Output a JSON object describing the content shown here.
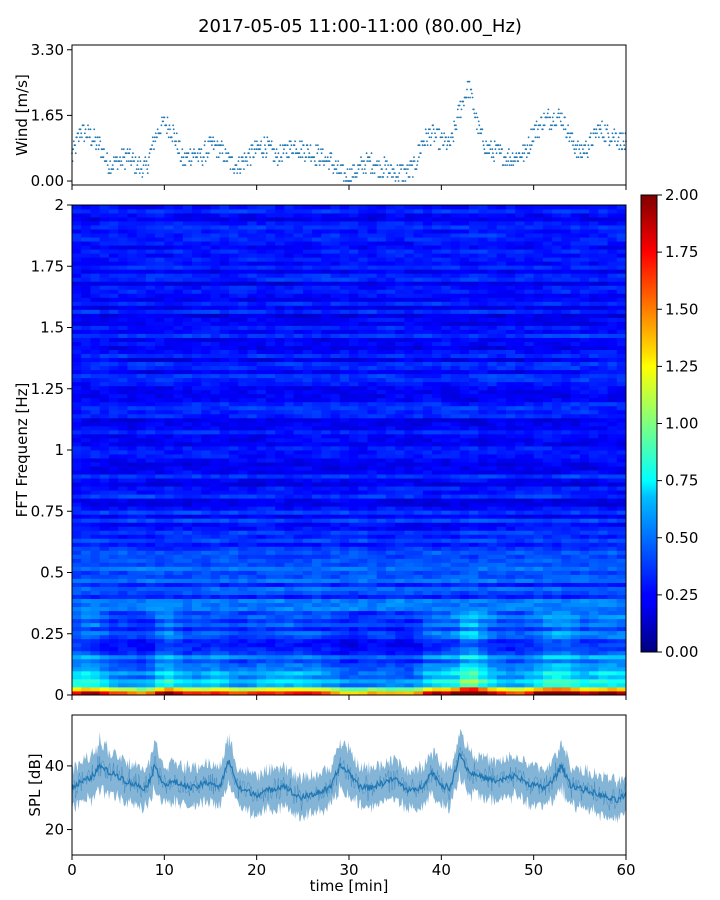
{
  "figure": {
    "title": "2017-05-05 11:00-11:00 (80.00_Hz)"
  },
  "chart_data": [
    {
      "type": "scatter",
      "panel": "wind",
      "ylabel": "Wind [m/s]",
      "xlim": [
        0,
        60
      ],
      "ylim": [
        0,
        3.3
      ],
      "yticks": [
        0,
        1.65,
        3.3
      ],
      "ytick_labels": [
        "0.00",
        "1.65",
        "3.30"
      ],
      "color": "#1f77b4",
      "x": [
        0,
        1,
        2,
        3,
        4,
        5,
        6,
        7,
        8,
        9,
        10,
        11,
        12,
        13,
        14,
        15,
        16,
        17,
        18,
        19,
        20,
        21,
        22,
        23,
        24,
        25,
        26,
        27,
        28,
        29,
        30,
        31,
        32,
        33,
        34,
        35,
        36,
        37,
        38,
        39,
        40,
        41,
        42,
        43,
        44,
        45,
        46,
        47,
        48,
        49,
        50,
        51,
        52,
        53,
        54,
        55,
        56,
        57,
        58,
        59,
        60
      ],
      "y": [
        0.6,
        1.3,
        1.1,
        0.9,
        0.4,
        0.5,
        0.6,
        0.4,
        0.3,
        1.1,
        1.5,
        1.2,
        0.5,
        0.7,
        0.6,
        0.9,
        0.8,
        0.5,
        0.4,
        0.6,
        0.8,
        0.9,
        0.6,
        0.7,
        0.9,
        0.8,
        0.7,
        0.6,
        0.5,
        0.2,
        0.1,
        0.3,
        0.5,
        0.4,
        0.3,
        0.2,
        0.2,
        0.3,
        1.0,
        1.2,
        1.0,
        0.9,
        1.8,
        2.4,
        1.3,
        0.8,
        0.7,
        0.6,
        0.6,
        0.7,
        1.2,
        1.5,
        1.6,
        1.6,
        1.1,
        0.7,
        0.9,
        1.3,
        1.2,
        1.1,
        0.9
      ]
    },
    {
      "type": "heatmap",
      "panel": "spectrogram",
      "ylabel": "FFT Frequenz [Hz]",
      "xlim": [
        0,
        60
      ],
      "ylim": [
        0,
        2
      ],
      "yticks": [
        0,
        0.25,
        0.5,
        0.75,
        1,
        1.25,
        1.5,
        1.75,
        2
      ],
      "ytick_labels": [
        "0",
        "0.25",
        "0.5",
        "0.75",
        "1",
        "1.25",
        "1.5",
        "1.75",
        "2"
      ],
      "colormap": "jet",
      "colorbar": {
        "range": [
          0,
          2
        ],
        "ticks": [
          0,
          0.25,
          0.5,
          0.75,
          1,
          1.25,
          1.5,
          1.75,
          2
        ],
        "tick_labels": [
          "0.00",
          "0.25",
          "0.50",
          "0.75",
          "1.00",
          "1.25",
          "1.50",
          "1.75",
          "2.00"
        ]
      },
      "frequency_bins_hz": [
        0.0,
        0.05,
        0.1,
        0.2,
        0.3,
        0.5,
        0.75,
        1.0,
        1.25,
        1.5,
        1.75,
        2.0
      ],
      "typical_magnitude": [
        1.6,
        0.8,
        0.6,
        0.45,
        0.4,
        0.38,
        0.3,
        0.28,
        0.27,
        0.27,
        0.27,
        0.27
      ]
    },
    {
      "type": "line",
      "panel": "spl",
      "xlabel": "time [min]",
      "ylabel": "SPL [dB]",
      "xlim": [
        0,
        60
      ],
      "ylim": [
        12,
        56
      ],
      "xticks": [
        0,
        10,
        20,
        30,
        40,
        50,
        60
      ],
      "xtick_labels": [
        "0",
        "10",
        "20",
        "30",
        "40",
        "50",
        "60"
      ],
      "yticks": [
        20,
        40
      ],
      "ytick_labels": [
        "20",
        "40"
      ],
      "color": "#1f77b4",
      "x": [
        0,
        1,
        2,
        3,
        4,
        5,
        6,
        7,
        8,
        9,
        10,
        11,
        12,
        13,
        14,
        15,
        16,
        17,
        18,
        19,
        20,
        21,
        22,
        23,
        24,
        25,
        26,
        27,
        28,
        29,
        30,
        31,
        32,
        33,
        34,
        35,
        36,
        37,
        38,
        39,
        40,
        41,
        42,
        43,
        44,
        45,
        46,
        47,
        48,
        49,
        50,
        51,
        52,
        53,
        54,
        55,
        56,
        57,
        58,
        59,
        60
      ],
      "y": [
        33,
        35,
        36,
        40,
        38,
        37,
        35,
        34,
        33,
        40,
        34,
        35,
        34,
        33,
        34,
        35,
        33,
        42,
        33,
        32,
        31,
        32,
        33,
        34,
        31,
        30,
        31,
        32,
        33,
        40,
        38,
        34,
        33,
        34,
        35,
        36,
        33,
        32,
        34,
        38,
        34,
        33,
        44,
        38,
        37,
        36,
        35,
        36,
        37,
        35,
        34,
        33,
        35,
        40,
        34,
        33,
        32,
        31,
        30,
        29,
        31
      ],
      "band": [
        6,
        6,
        7,
        8,
        7,
        6,
        6,
        6,
        6,
        7,
        6,
        6,
        6,
        6,
        6,
        6,
        6,
        7,
        6,
        6,
        6,
        6,
        6,
        6,
        6,
        6,
        6,
        6,
        6,
        7,
        7,
        6,
        6,
        6,
        6,
        6,
        6,
        6,
        6,
        7,
        6,
        6,
        7,
        7,
        6,
        6,
        6,
        6,
        6,
        6,
        6,
        6,
        6,
        7,
        6,
        6,
        6,
        6,
        6,
        6,
        6
      ]
    }
  ]
}
